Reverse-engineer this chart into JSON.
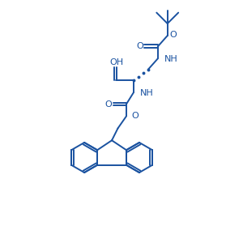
{
  "bg_color": "#ffffff",
  "line_color": "#1a52a0",
  "line_width": 1.4,
  "fig_size": [
    3.0,
    3.0
  ],
  "dpi": 100,
  "xlim": [
    0,
    10
  ],
  "ylim": [
    0,
    10
  ]
}
